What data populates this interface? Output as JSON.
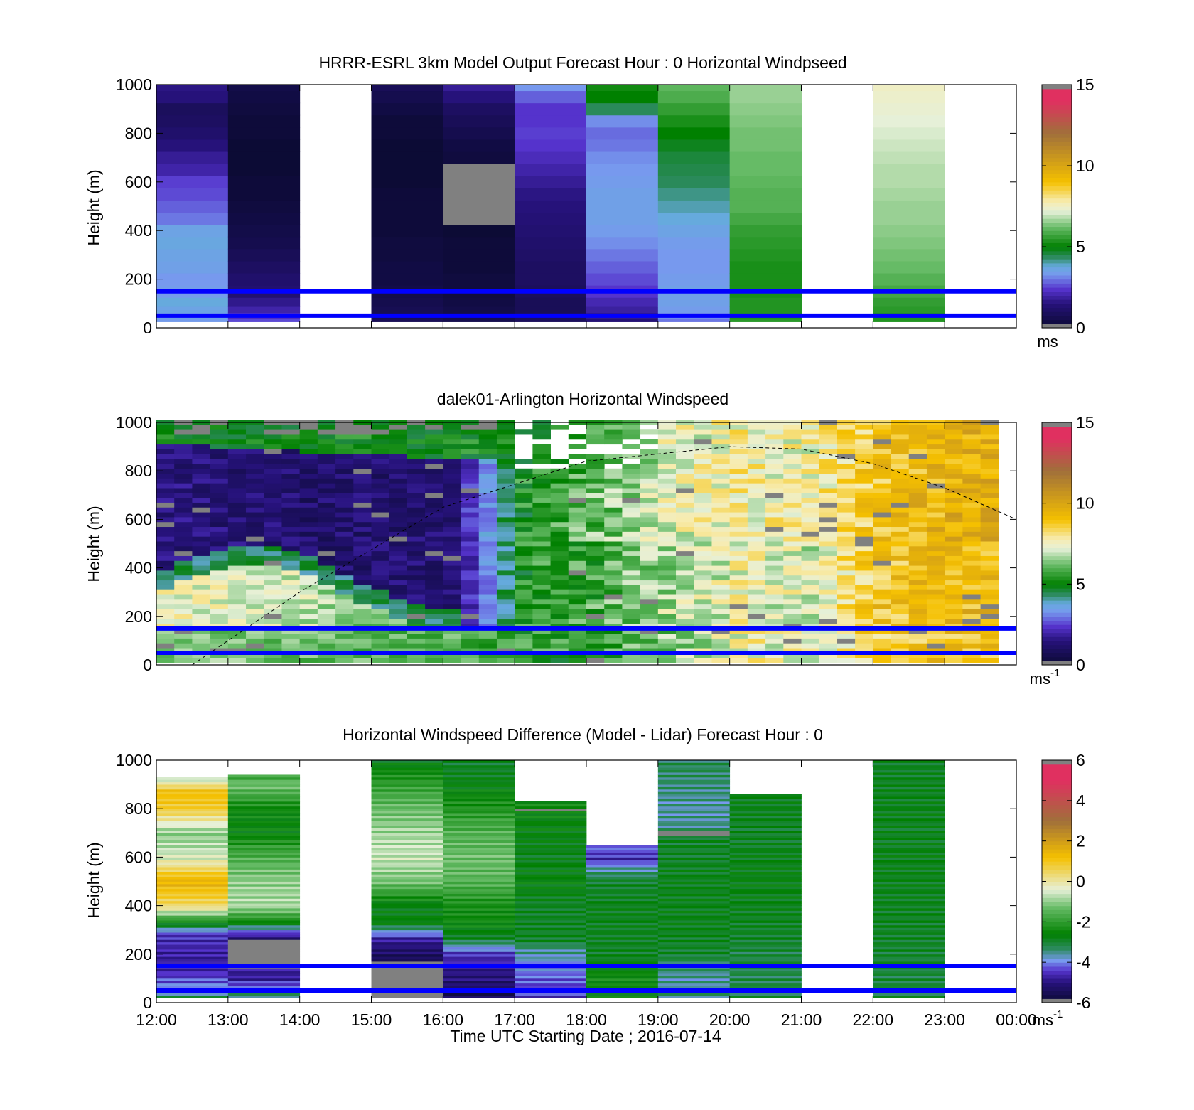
{
  "figure": {
    "xlabel": "Time UTC  Starting Date ; 2016-07-14",
    "x_tick_labels": [
      "12:00",
      "13:00",
      "14:00",
      "15:00",
      "16:00",
      "17:00",
      "18:00",
      "19:00",
      "20:00",
      "21:00",
      "22:00",
      "23:00",
      "00:00"
    ]
  },
  "colors": {
    "background": "#ffffff",
    "lines": "#0000ff",
    "nodata": "#808080",
    "speed_colormap": [
      "#0a0a30",
      "#26127a",
      "#5533cc",
      "#7799ee",
      "#66aadd",
      "#2a8a5a",
      "#008000",
      "#66bb66",
      "#e6f0d8",
      "#f7ecb0",
      "#f5c000",
      "#a0703a",
      "#e03060",
      "#808080"
    ],
    "diff_colormap": [
      "#0a0a30",
      "#26127a",
      "#5533cc",
      "#7799ee",
      "#2a8a5a",
      "#008000",
      "#66bb66",
      "#e6f0d8",
      "#f5c000",
      "#a0703a",
      "#e03060"
    ]
  },
  "chart_data": [
    {
      "type": "heatmap",
      "title": "HRRR-ESRL 3km Model Output   Forecast Hour : 0 Horizontal Windpseed",
      "ylabel": "Height (m)",
      "xlim": [
        "12:00",
        "00:00"
      ],
      "ylim": [
        0,
        1000
      ],
      "y_tick_labels": [
        "0",
        "200",
        "400",
        "600",
        "800",
        "1000"
      ],
      "colorbar": {
        "range": [
          0,
          15
        ],
        "tick_labels": [
          "0",
          "5",
          "10",
          "15"
        ],
        "unit": "ms"
      },
      "horizontal_lines_m": [
        50,
        150
      ],
      "heights_m": [
        25,
        50,
        75,
        100,
        150,
        200,
        250,
        300,
        350,
        400,
        450,
        500,
        550,
        600,
        650,
        700,
        750,
        800,
        850,
        900,
        950,
        1000
      ],
      "columns": [
        {
          "time": "12:00",
          "windspeed_ms": [
            3.4,
            3.5,
            3.6,
            3.8,
            3.4,
            3.3,
            3.5,
            3.6,
            3.7,
            3.6,
            3.0,
            2.8,
            2.6,
            2.5,
            2.0,
            1.8,
            1.5,
            1.2,
            1.0,
            0.9,
            1.5,
            1.6
          ]
        },
        {
          "time": "13:00",
          "windspeed_ms": [
            2.6,
            2.3,
            2.0,
            1.7,
            1.3,
            1.2,
            1.0,
            0.8,
            0.6,
            0.5,
            0.4,
            0.3,
            0.2,
            0.2,
            0.1,
            0.1,
            0.1,
            0.2,
            0.2,
            0.3,
            0.4,
            0.5
          ]
        },
        {
          "time": "14:00",
          "windspeed_ms": [
            null,
            null,
            null,
            null,
            null,
            null,
            null,
            null,
            null,
            null,
            null,
            null,
            null,
            null,
            null,
            null,
            null,
            null,
            null,
            null,
            null,
            null
          ]
        },
        {
          "time": "15:00",
          "windspeed_ms": [
            0.8,
            0.7,
            0.7,
            0.6,
            0.5,
            0.4,
            0.4,
            0.3,
            0.3,
            0.2,
            0.2,
            0.2,
            0.2,
            0.1,
            0.1,
            0.1,
            0.1,
            0.2,
            0.2,
            0.4,
            0.6,
            0.8
          ]
        },
        {
          "time": "16:00",
          "windspeed_ms": [
            0.6,
            0.6,
            0.5,
            0.4,
            0.3,
            0.3,
            0.2,
            0.2,
            0.2,
            0.1,
            null,
            null,
            null,
            null,
            null,
            0.3,
            0.4,
            0.6,
            0.8,
            1.0,
            1.5,
            1.8
          ]
        },
        {
          "time": "17:00",
          "windspeed_ms": [
            0.9,
            0.9,
            0.8,
            0.8,
            0.9,
            1.0,
            1.0,
            1.1,
            1.2,
            1.3,
            1.4,
            1.5,
            1.6,
            1.8,
            2.0,
            2.2,
            2.4,
            2.5,
            2.4,
            2.4,
            2.8,
            3.3
          ]
        },
        {
          "time": "18:00",
          "windspeed_ms": [
            1.4,
            1.7,
            1.9,
            2.1,
            2.4,
            2.6,
            2.8,
            3.0,
            3.2,
            3.4,
            3.5,
            3.5,
            3.5,
            3.4,
            3.3,
            3.2,
            3.0,
            2.9,
            3.2,
            4.4,
            5.0,
            5.2
          ]
        },
        {
          "time": "19:00",
          "windspeed_ms": [
            3.0,
            3.2,
            3.4,
            3.5,
            3.5,
            3.4,
            3.3,
            3.3,
            3.4,
            3.6,
            3.8,
            4.0,
            4.2,
            4.4,
            4.5,
            4.6,
            4.8,
            5.0,
            5.3,
            5.6,
            5.9,
            6.1
          ]
        },
        {
          "time": "20:00",
          "windspeed_ms": [
            5.5,
            5.4,
            5.4,
            5.4,
            5.3,
            5.3,
            5.3,
            5.4,
            5.5,
            5.6,
            5.8,
            6.0,
            6.0,
            6.1,
            6.2,
            6.2,
            6.3,
            6.3,
            6.4,
            6.5,
            6.6,
            6.6
          ]
        },
        {
          "time": "21:00",
          "windspeed_ms": [
            null,
            null,
            null,
            null,
            null,
            null,
            null,
            null,
            null,
            null,
            null,
            null,
            null,
            null,
            null,
            null,
            null,
            null,
            null,
            null,
            null,
            null
          ]
        },
        {
          "time": "22:00",
          "windspeed_ms": [
            5.4,
            5.4,
            5.5,
            5.6,
            5.8,
            6.0,
            6.2,
            6.3,
            6.4,
            6.5,
            6.6,
            6.6,
            6.7,
            6.8,
            6.8,
            6.9,
            7.0,
            7.1,
            7.2,
            7.3,
            7.4,
            7.5
          ]
        },
        {
          "time": "23:00",
          "windspeed_ms": [
            null,
            null,
            null,
            null,
            null,
            null,
            null,
            null,
            null,
            null,
            null,
            null,
            null,
            null,
            null,
            null,
            null,
            null,
            null,
            null,
            null,
            null
          ]
        }
      ]
    },
    {
      "type": "heatmap",
      "title": "dalek01-Arlington  Horizontal Windspeed",
      "ylabel": "Height (m)",
      "xlim": [
        "12:00",
        "00:00"
      ],
      "ylim": [
        0,
        1000
      ],
      "y_tick_labels": [
        "0",
        "200",
        "400",
        "600",
        "800",
        "1000"
      ],
      "colorbar": {
        "range": [
          0,
          15
        ],
        "tick_labels": [
          "0",
          "5",
          "10",
          "15"
        ],
        "unit": "ms",
        "unit_exponent": "-1"
      },
      "horizontal_lines_m": [
        50,
        150
      ],
      "time_step_min": 15,
      "height_bins_m": [
        [
          0,
          150,
          6.0
        ],
        [
          150,
          300,
          7.2
        ],
        [
          300,
          400,
          4.4
        ],
        [
          400,
          850,
          1.7
        ],
        [
          850,
          1000,
          5.0
        ]
      ],
      "profile_by_hour": [
        {
          "time": "12:00",
          "low_ms": 6.5,
          "nocturnal_jet_ms": 7.5,
          "residual_layer_ms": 1.5,
          "top_of_layer_m": 380
        },
        {
          "time": "14:00",
          "low_ms": 6.2,
          "nocturnal_jet_ms": 7.0,
          "residual_layer_ms": 1.2,
          "top_of_layer_m": 360
        },
        {
          "time": "16:00",
          "low_ms": 6.0,
          "nocturnal_jet_ms": 5.5,
          "residual_layer_ms": 1.3,
          "top_of_layer_m": 330
        },
        {
          "time": "17:00",
          "low_ms": 5.5,
          "nocturnal_jet_ms": 5.4,
          "residual_layer_ms": 5.3,
          "top_of_layer_m": 0
        },
        {
          "time": "18:00",
          "low_ms": 5.6,
          "nocturnal_jet_ms": 5.8,
          "residual_layer_ms": 6.2,
          "top_of_layer_m": 0
        },
        {
          "time": "19:00",
          "low_ms": 6.4,
          "nocturnal_jet_ms": 6.8,
          "residual_layer_ms": 7.2,
          "top_of_layer_m": 0
        },
        {
          "time": "20:00",
          "low_ms": 7.6,
          "nocturnal_jet_ms": 7.5,
          "residual_layer_ms": 7.8,
          "top_of_layer_m": 0
        },
        {
          "time": "21:00",
          "low_ms": 7.4,
          "nocturnal_jet_ms": 7.2,
          "residual_layer_ms": 7.5,
          "top_of_layer_m": 0
        },
        {
          "time": "22:00",
          "low_ms": 8.7,
          "nocturnal_jet_ms": 8.9,
          "residual_layer_ms": 9.0,
          "top_of_layer_m": 0
        },
        {
          "time": "23:00",
          "low_ms": 9.0,
          "nocturnal_jet_ms": 9.3,
          "residual_layer_ms": 9.6,
          "top_of_layer_m": 0
        }
      ],
      "dashed_curve": {
        "x": [
          "12:30",
          "14:00",
          "16:00",
          "18:00",
          "20:00",
          "21:00",
          "22:00",
          "23:00",
          "00:00"
        ],
        "y_m": [
          0,
          300,
          650,
          840,
          900,
          890,
          830,
          730,
          600
        ]
      }
    },
    {
      "type": "heatmap",
      "title": "Horizontal Windspeed Difference (Model - Lidar) Forecast Hour : 0",
      "ylabel": "Height (m)",
      "xlim": [
        "12:00",
        "00:00"
      ],
      "ylim": [
        0,
        1000
      ],
      "y_tick_labels": [
        "0",
        "200",
        "400",
        "600",
        "800",
        "1000"
      ],
      "colorbar": {
        "range": [
          -6,
          6
        ],
        "tick_labels": [
          "-6",
          "-4",
          "-2",
          "0",
          "2",
          "4",
          "6"
        ],
        "unit": "ms",
        "unit_exponent": "-1"
      },
      "horizontal_lines_m": [
        50,
        150
      ],
      "columns": [
        {
          "time": "12:00",
          "top_m": 930,
          "profile": [
            [
              0,
              -2.8
            ],
            [
              80,
              -4.2
            ],
            [
              160,
              -4.8
            ],
            [
              280,
              -4.5
            ],
            [
              330,
              -2.5
            ],
            [
              400,
              0.4
            ],
            [
              500,
              1.5
            ],
            [
              600,
              -0.5
            ],
            [
              700,
              -1.0
            ],
            [
              800,
              0.8
            ],
            [
              870,
              1.2
            ],
            [
              930,
              -1.0
            ]
          ]
        },
        {
          "time": "13:00",
          "top_m": 940,
          "profile": [
            [
              0,
              -2.8
            ],
            [
              100,
              -4.8
            ],
            [
              140,
              -4.8
            ],
            [
              150,
              null
            ],
            [
              260,
              null
            ],
            [
              270,
              -5.0
            ],
            [
              310,
              -3.5
            ],
            [
              330,
              -2.5
            ],
            [
              400,
              -0.8
            ],
            [
              500,
              -1.0
            ],
            [
              600,
              -1.6
            ],
            [
              700,
              -2.6
            ],
            [
              800,
              -2.4
            ],
            [
              900,
              -1.2
            ],
            [
              940,
              -2.0
            ]
          ]
        },
        {
          "time": "14:00",
          "top_m": 0,
          "profile": []
        },
        {
          "time": "15:00",
          "top_m": 1000,
          "profile": [
            [
              0,
              null
            ],
            [
              170,
              null
            ],
            [
              180,
              -5.5
            ],
            [
              260,
              -4.8
            ],
            [
              330,
              -2.6
            ],
            [
              400,
              -2.8
            ],
            [
              500,
              -1.2
            ],
            [
              600,
              -0.6
            ],
            [
              700,
              -0.9
            ],
            [
              800,
              -1.3
            ],
            [
              900,
              -2.0
            ],
            [
              1000,
              -2.8
            ]
          ]
        },
        {
          "time": "16:00",
          "top_m": 1000,
          "profile": [
            [
              0,
              -5.6
            ],
            [
              120,
              -5.0
            ],
            [
              200,
              -4.5
            ],
            [
              260,
              -3.0
            ],
            [
              330,
              -2.4
            ],
            [
              400,
              -2.3
            ],
            [
              500,
              -1.5
            ],
            [
              600,
              -1.3
            ],
            [
              700,
              -1.5
            ],
            [
              800,
              -2.2
            ],
            [
              900,
              -2.7
            ],
            [
              1000,
              -3.0
            ]
          ]
        },
        {
          "time": "17:00",
          "top_m": 830,
          "profile": [
            [
              0,
              -4.6
            ],
            [
              100,
              -4.2
            ],
            [
              170,
              -3.8
            ],
            [
              220,
              -3.5
            ],
            [
              260,
              -2.9
            ],
            [
              400,
              -2.9
            ],
            [
              500,
              -2.6
            ],
            [
              600,
              -2.8
            ],
            [
              700,
              -2.7
            ],
            [
              790,
              -2.5
            ],
            [
              800,
              null
            ],
            [
              810,
              -2.4
            ],
            [
              830,
              -2.4
            ]
          ]
        },
        {
          "time": "18:00",
          "top_m": 650,
          "profile": [
            [
              0,
              -2.6
            ],
            [
              100,
              -2.4
            ],
            [
              150,
              -2.7
            ],
            [
              200,
              -2.9
            ],
            [
              400,
              -2.8
            ],
            [
              500,
              -3.0
            ],
            [
              560,
              -3.7
            ],
            [
              590,
              -4.6
            ],
            [
              620,
              -4.4
            ],
            [
              650,
              -3.9
            ]
          ]
        },
        {
          "time": "19:00",
          "top_m": 1000,
          "profile": [
            [
              0,
              -3.4
            ],
            [
              100,
              -3.6
            ],
            [
              200,
              -3.0
            ],
            [
              300,
              -2.8
            ],
            [
              500,
              -2.8
            ],
            [
              600,
              -2.9
            ],
            [
              680,
              -3.0
            ],
            [
              700,
              null
            ],
            [
              720,
              -3.5
            ],
            [
              800,
              -3.6
            ],
            [
              900,
              -3.4
            ],
            [
              1000,
              -3.2
            ]
          ]
        },
        {
          "time": "20:00",
          "top_m": 860,
          "profile": [
            [
              0,
              -3.0
            ],
            [
              100,
              -3.2
            ],
            [
              200,
              -3.1
            ],
            [
              300,
              -2.9
            ],
            [
              500,
              -2.7
            ],
            [
              700,
              -2.9
            ],
            [
              860,
              -2.8
            ]
          ]
        },
        {
          "time": "21:00",
          "top_m": 0,
          "profile": []
        },
        {
          "time": "22:00",
          "top_m": 1000,
          "profile": [
            [
              0,
              -3.0
            ],
            [
              100,
              -3.1
            ],
            [
              200,
              -3.0
            ],
            [
              300,
              -2.9
            ],
            [
              500,
              -2.8
            ],
            [
              800,
              -2.8
            ],
            [
              1000,
              -2.9
            ]
          ]
        },
        {
          "time": "23:00",
          "top_m": 0,
          "profile": []
        }
      ]
    }
  ]
}
